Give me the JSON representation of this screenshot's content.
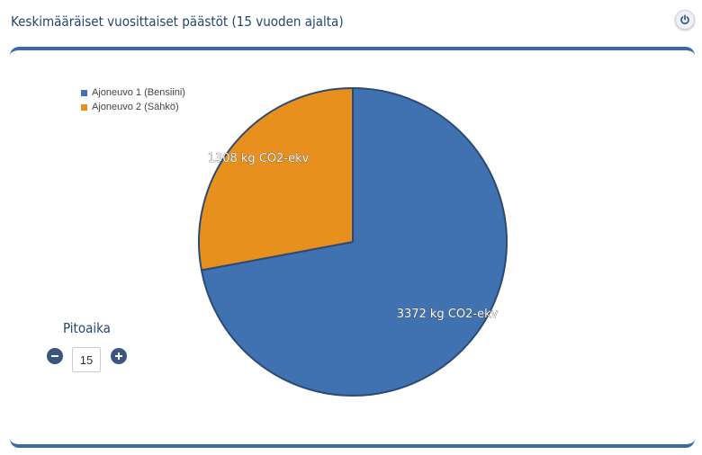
{
  "header": {
    "title": "Keskimääräiset vuosittaiset päästöt (15 vuoden ajalta)",
    "power_icon": "power-icon"
  },
  "controls": {
    "label": "Pitoaika",
    "value": "15",
    "decrement_icon": "minus-circle-icon",
    "increment_icon": "plus-circle-icon"
  },
  "colors": {
    "series1": "#4071b0",
    "series2": "#e8901e",
    "accent": "#3f69a1",
    "title": "#26456e"
  },
  "chart_data": {
    "type": "pie",
    "unit": "kg CO2-ekv",
    "slices": [
      {
        "name": "Ajoneuvo 1 (Bensiini)",
        "value": 3372,
        "label": "3372 kg CO2-ekv"
      },
      {
        "name": "Ajoneuvo 2 (Sähkö)",
        "value": 1308,
        "label": "1308 kg CO2-ekv"
      }
    ],
    "legend": "top-left"
  }
}
